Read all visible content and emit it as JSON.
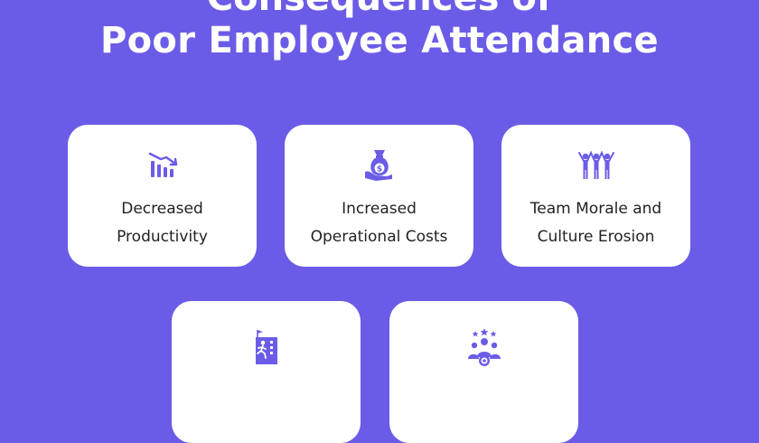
{
  "header": {
    "title_line1": "Consequences of",
    "title_line2": "Poor Employee Attendance"
  },
  "cards": [
    {
      "icon": "declining-chart-icon",
      "lines": [
        "Decreased",
        "Productivity"
      ]
    },
    {
      "icon": "money-bag-hand-icon",
      "lines": [
        "Increased",
        "Operational Costs"
      ]
    },
    {
      "icon": "team-people-icon",
      "lines": [
        "Team Morale and",
        "Culture Erosion"
      ]
    },
    {
      "icon": "runner-office-icon",
      "lines": []
    },
    {
      "icon": "team-stars-icon",
      "lines": []
    }
  ],
  "colors": {
    "background": "#6b5ce7",
    "icon": "#6b5ce7",
    "card": "#ffffff",
    "text": "#222222"
  }
}
